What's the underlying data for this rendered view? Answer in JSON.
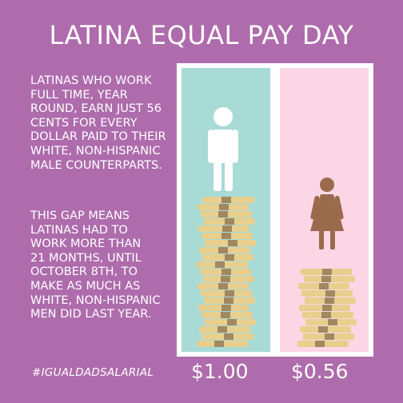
{
  "title": "LATINA EQUAL PAY DAY",
  "paragraph1": {
    "lines": [
      "LATINAS WHO WORK",
      "FULL TIME, YEAR",
      "ROUND, EARN JUST 56",
      "CENTS FOR EVERY",
      "DOLLAR PAID TO THEIR",
      "WHITE, NON-HISPANIC",
      "MALE COUNTERPARTS."
    ]
  },
  "paragraph2": {
    "lines": [
      "THIS GAP MEANS",
      "LATINAS HAD TO",
      "WORK MORE THAN",
      "21 MONTHS, UNTIL",
      "OCTOBER 8TH, TO",
      "MAKE AS MUCH AS",
      "WHITE, NON-HISPANIC",
      "MEN DID LAST YEAR."
    ]
  },
  "hashtag": "#IGUALDADSALARIAL",
  "panels": {
    "male": {
      "icon": "man-icon",
      "amount": "$1.00",
      "background": "#a8dad6",
      "figure_color": "#ffffff"
    },
    "female": {
      "icon": "woman-icon",
      "amount": "$0.56",
      "background": "#fdd6e6",
      "figure_color": "#9a6a4c"
    }
  },
  "colors": {
    "background": "#ae6cac",
    "text": "#ffffff",
    "money": "#e8cf8e",
    "money_band": "#a08860"
  }
}
